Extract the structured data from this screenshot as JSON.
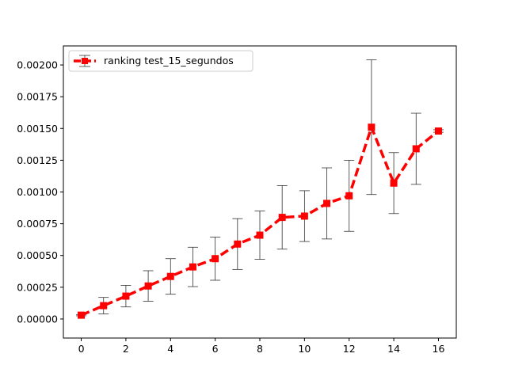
{
  "chart_data": {
    "type": "line",
    "title": "",
    "xlabel": "",
    "ylabel": "",
    "xlim": [
      -0.8,
      16.8
    ],
    "ylim": [
      -0.00015,
      0.00215
    ],
    "x_ticks": [
      0,
      2,
      4,
      6,
      8,
      10,
      12,
      14,
      16
    ],
    "y_ticks": [
      0.0,
      0.00025,
      0.0005,
      0.00075,
      0.001,
      0.00125,
      0.0015,
      0.00175,
      0.002
    ],
    "y_tick_labels": [
      "0.00000",
      "0.00025",
      "0.00050",
      "0.00075",
      "0.00100",
      "0.00125",
      "0.00150",
      "0.00175",
      "0.00200"
    ],
    "grid": false,
    "legend_position": "top-left",
    "series": [
      {
        "name": "ranking test_15_segundos",
        "color": "#ff0000",
        "line_style": "dashed",
        "marker": "square",
        "error_bar_color": "#333333",
        "x": [
          0,
          1,
          2,
          3,
          4,
          5,
          6,
          7,
          8,
          9,
          10,
          11,
          12,
          13,
          14,
          15,
          16
        ],
        "y": [
          3e-05,
          0.000105,
          0.00018,
          0.00026,
          0.000335,
          0.00041,
          0.000475,
          0.00059,
          0.00066,
          0.0008,
          0.00081,
          0.00091,
          0.00097,
          0.00151,
          0.00107,
          0.00134,
          0.00148
        ],
        "yerr": [
          5e-06,
          6.5e-05,
          8.5e-05,
          0.00012,
          0.00014,
          0.000155,
          0.00017,
          0.0002,
          0.00019,
          0.00025,
          0.0002,
          0.00028,
          0.00028,
          0.00053,
          0.00024,
          0.00028,
          1e-05
        ]
      }
    ]
  }
}
